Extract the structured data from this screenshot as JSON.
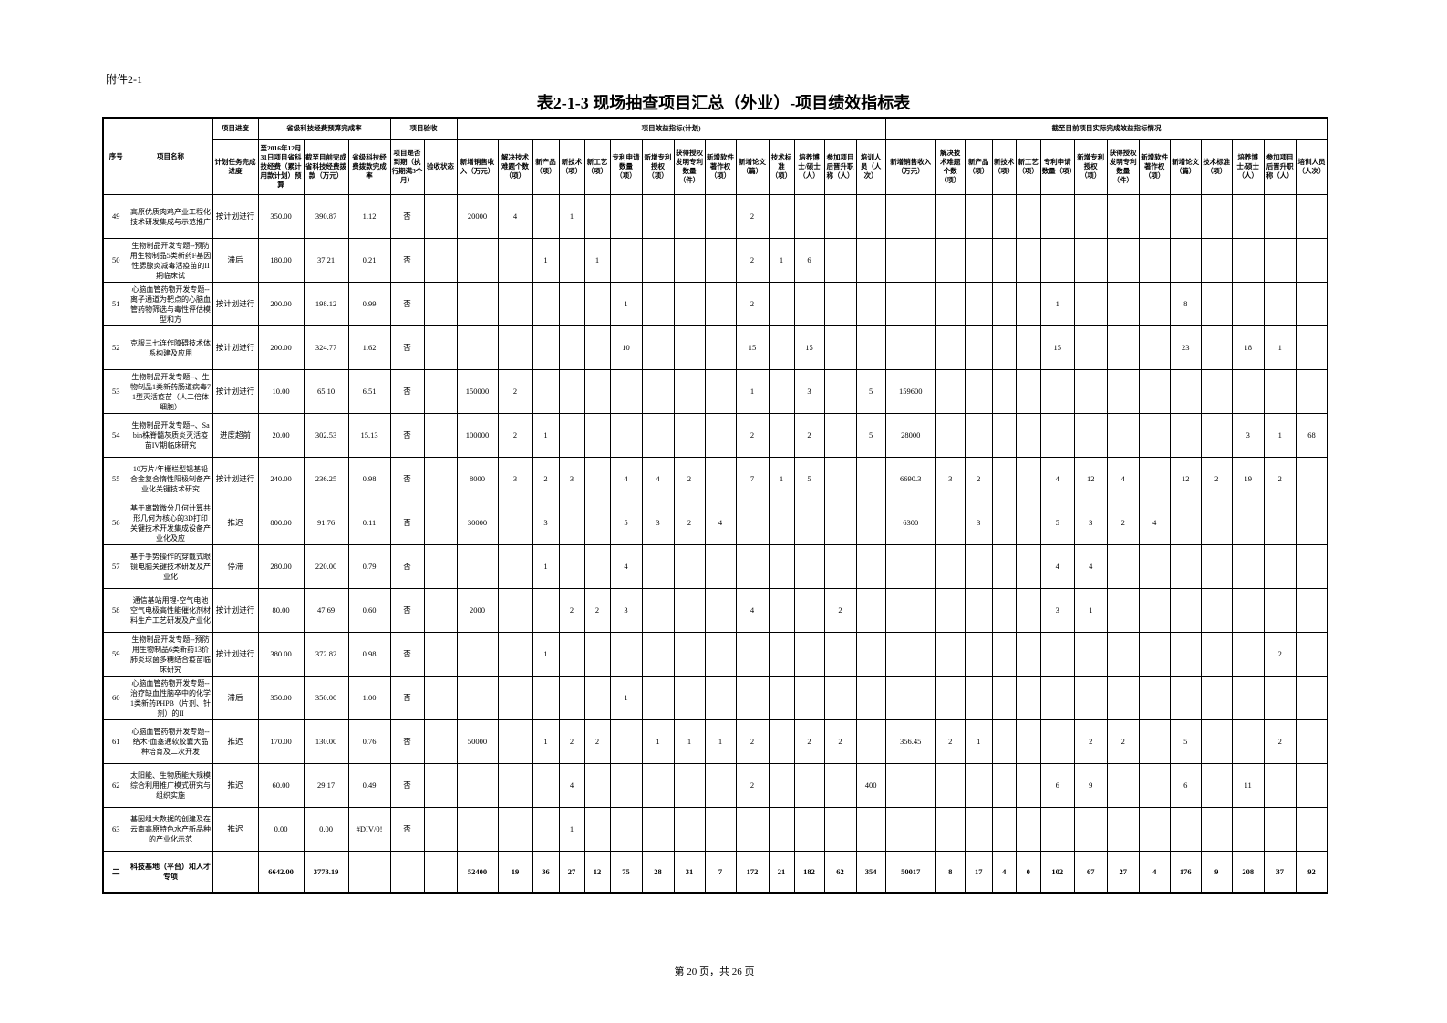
{
  "header": {
    "attachment": "附件2-1",
    "title": "表2-1-3 现场抽查项目汇总（外业）-项目绩效指标表"
  },
  "table": {
    "groups": [
      "项目进度",
      "省级科技经费预算完成率",
      "项目验收",
      "项目效益指标(计划)",
      "截至目前项目实际完成效益指标情况"
    ],
    "columns": [
      "序号",
      "项目名称",
      "计划任务完成进度",
      "至2016年12月31日项目省科技经费（累计用款计划）预算",
      "截至目前完成省科技经费拨款（万元）",
      "省级科技经费拨款完成率",
      "项目是否到期（执行期满3个月）",
      "验收状态",
      "新增销售收入（万元）",
      "解决技术难题个数（项）",
      "新产品（项）",
      "新技术（项）",
      "新工艺（项）",
      "专利申请数量（项）",
      "新增专利授权（项）",
      "获得授权发明专利数量（件）",
      "新增软件著作权（项）",
      "新增论文（篇）",
      "技术标准（项）",
      "培养博士/硕士（人）",
      "参加项目后晋升职称（人）",
      "培训人员（人次）",
      "新增销售收入（万元）",
      "解决技术难题个数（项）",
      "新产品（项）",
      "新技术（项）",
      "新工艺（项）",
      "专利申请数量（项）",
      "新增专利授权（项）",
      "获得授权发明专利数量（件）",
      "新增软件著作权（项）",
      "新增论文（篇）",
      "技术标准（项）",
      "培养博士/硕士（人）",
      "参加项目后晋升职称（人）",
      "培训人员（人次）"
    ],
    "rows": [
      [
        "49",
        "高原优质肉鸡产业工程化技术研发集成与示范推广",
        "按计划进行",
        "350.00",
        "390.87",
        "1.12",
        "否",
        null,
        20000,
        4,
        null,
        1,
        null,
        null,
        null,
        null,
        null,
        2,
        null,
        null,
        null,
        null,
        null,
        null,
        null,
        null,
        null,
        null,
        null,
        null,
        null,
        null,
        null,
        null,
        null,
        null
      ],
      [
        "50",
        "生物制品开发专题--预防用生物制品5类新药F基因性腮腺炎减毒活疫苗的II期临床试",
        "滞后",
        "180.00",
        "37.21",
        "0.21",
        "否",
        null,
        null,
        null,
        1,
        null,
        1,
        null,
        null,
        null,
        null,
        2,
        1,
        6,
        null,
        null,
        null,
        null,
        null,
        null,
        null,
        null,
        null,
        null,
        null,
        null,
        null,
        null,
        null,
        null
      ],
      [
        "51",
        "心脑血管药物开发专题--离子通道为靶点的心脑血管药物筛选与毒性评估模型和方",
        "按计划进行",
        "200.00",
        "198.12",
        "0.99",
        "否",
        null,
        null,
        null,
        null,
        null,
        null,
        1,
        null,
        null,
        null,
        2,
        null,
        null,
        null,
        null,
        null,
        null,
        null,
        null,
        null,
        1,
        null,
        null,
        null,
        8,
        null,
        null,
        null,
        null
      ],
      [
        "52",
        "克服三七连作障碍技术体系构建及应用",
        "按计划进行",
        "200.00",
        "324.77",
        "1.62",
        "否",
        null,
        null,
        null,
        null,
        null,
        null,
        10,
        null,
        null,
        null,
        15,
        null,
        15,
        null,
        null,
        null,
        null,
        null,
        null,
        null,
        15,
        null,
        null,
        null,
        23,
        null,
        18,
        1,
        null
      ],
      [
        "53",
        "生物制品开发专题--、生物制品1类新药肠道病毒71型灭活疫苗（人二倍体细胞）",
        "按计划进行",
        "10.00",
        "65.10",
        "6.51",
        "否",
        null,
        150000,
        2,
        null,
        null,
        null,
        null,
        null,
        null,
        null,
        1,
        null,
        3,
        null,
        5,
        159600,
        null,
        null,
        null,
        null,
        null,
        null,
        null,
        null,
        null,
        null,
        null,
        null,
        null
      ],
      [
        "54",
        "生物制品开发专题--、Sabin株脊髓灰质炎灭活疫苗IV期临床研究",
        "进度超前",
        "20.00",
        "302.53",
        "15.13",
        "否",
        null,
        100000,
        2,
        1,
        null,
        null,
        null,
        null,
        null,
        null,
        2,
        null,
        2,
        null,
        5,
        28000,
        null,
        null,
        null,
        null,
        null,
        null,
        null,
        null,
        null,
        null,
        3,
        1,
        68
      ],
      [
        "55",
        "10万片/年栅栏型铝基铅合金复合惰性阳极制备产业化关键技术研究",
        "按计划进行",
        "240.00",
        "236.25",
        "0.98",
        "否",
        null,
        8000,
        3,
        2,
        3,
        null,
        4,
        4,
        2,
        null,
        7,
        1,
        5,
        null,
        null,
        6690.3,
        3,
        2,
        null,
        null,
        4,
        12,
        4,
        null,
        12,
        2,
        19,
        2,
        null
      ],
      [
        "56",
        "基于离散微分几何计算共形几何为核心的3D打印关键技术开发集成设备产业化及应",
        "推迟",
        "800.00",
        "91.76",
        "0.11",
        "否",
        null,
        30000,
        null,
        3,
        null,
        null,
        5,
        3,
        2,
        4,
        null,
        null,
        null,
        null,
        null,
        6300,
        null,
        3,
        null,
        null,
        5,
        3,
        2,
        4,
        null,
        null,
        null,
        null,
        null
      ],
      [
        "57",
        "基于手势操作的穿戴式眼镜电脑关键技术研发及产业化",
        "停滞",
        "280.00",
        "220.00",
        "0.79",
        "否",
        null,
        null,
        null,
        1,
        null,
        null,
        4,
        null,
        null,
        null,
        null,
        null,
        null,
        null,
        null,
        null,
        null,
        null,
        null,
        null,
        4,
        4,
        null,
        null,
        null,
        null,
        null,
        null,
        null
      ],
      [
        "58",
        "通信基站用锂-空气电池空气电极高性能催化剂材料生产工艺研发及产业化",
        "按计划进行",
        "80.00",
        "47.69",
        "0.60",
        "否",
        null,
        2000,
        null,
        null,
        2,
        2,
        3,
        null,
        null,
        null,
        4,
        null,
        null,
        2,
        null,
        null,
        null,
        null,
        null,
        null,
        3,
        1,
        null,
        null,
        null,
        null,
        null,
        null,
        null
      ],
      [
        "59",
        "生物制品开发专题--预防用生物制品6类新药13价肺炎球菌多糖结合疫苗临床研究",
        "按计划进行",
        "380.00",
        "372.82",
        "0.98",
        "否",
        null,
        null,
        null,
        1,
        null,
        null,
        null,
        null,
        null,
        null,
        null,
        null,
        null,
        null,
        null,
        null,
        null,
        null,
        null,
        null,
        null,
        null,
        null,
        null,
        null,
        null,
        null,
        2,
        null
      ],
      [
        "60",
        "心脑血管药物开发专题--治疗缺血性脑卒中的化学1类新药PHPB（片剂、针剂）的II",
        "滞后",
        "350.00",
        "350.00",
        "1.00",
        "否",
        null,
        null,
        null,
        null,
        null,
        null,
        1,
        null,
        null,
        null,
        null,
        null,
        null,
        null,
        null,
        null,
        null,
        null,
        null,
        null,
        null,
        null,
        null,
        null,
        null,
        null,
        null,
        null,
        null
      ],
      [
        "61",
        "心脑血管药物开发专题--络木·血塞通软胶囊大品种培育及二次开发",
        "推迟",
        "170.00",
        "130.00",
        "0.76",
        "否",
        null,
        50000,
        null,
        1,
        2,
        2,
        null,
        1,
        1,
        1,
        2,
        null,
        2,
        2,
        null,
        356.45,
        2,
        1,
        null,
        null,
        null,
        2,
        2,
        null,
        5,
        null,
        null,
        2,
        null
      ],
      [
        "62",
        "太阳能、生物质能大规模综合利用推广模式研究与组织实施",
        "推迟",
        "60.00",
        "29.17",
        "0.49",
        "否",
        null,
        null,
        null,
        null,
        4,
        null,
        null,
        null,
        null,
        null,
        2,
        null,
        null,
        null,
        400,
        null,
        null,
        null,
        null,
        null,
        6,
        9,
        null,
        null,
        6,
        null,
        11,
        null,
        null
      ],
      [
        "63",
        "基因组大数据的创建及在云南高原特色水产新品种的产业化示范",
        "推迟",
        "0.00",
        "0.00",
        "#DIV/0!",
        "否",
        null,
        null,
        null,
        null,
        1,
        null,
        null,
        null,
        null,
        null,
        null,
        null,
        null,
        null,
        null,
        null,
        null,
        null,
        null,
        null,
        null,
        null,
        null,
        null,
        null,
        null,
        null,
        null,
        null
      ],
      [
        "二",
        "科技基地（平台）和人才专项",
        null,
        "6642.00",
        "3773.19",
        null,
        null,
        null,
        52400,
        19,
        36,
        27,
        12,
        75,
        28,
        31,
        7,
        172,
        21,
        182,
        62,
        354,
        50017,
        8,
        17,
        4,
        0,
        102,
        67,
        27,
        4,
        176,
        9,
        208,
        37,
        92
      ]
    ]
  },
  "footer": "第 20 页，共 26 页"
}
